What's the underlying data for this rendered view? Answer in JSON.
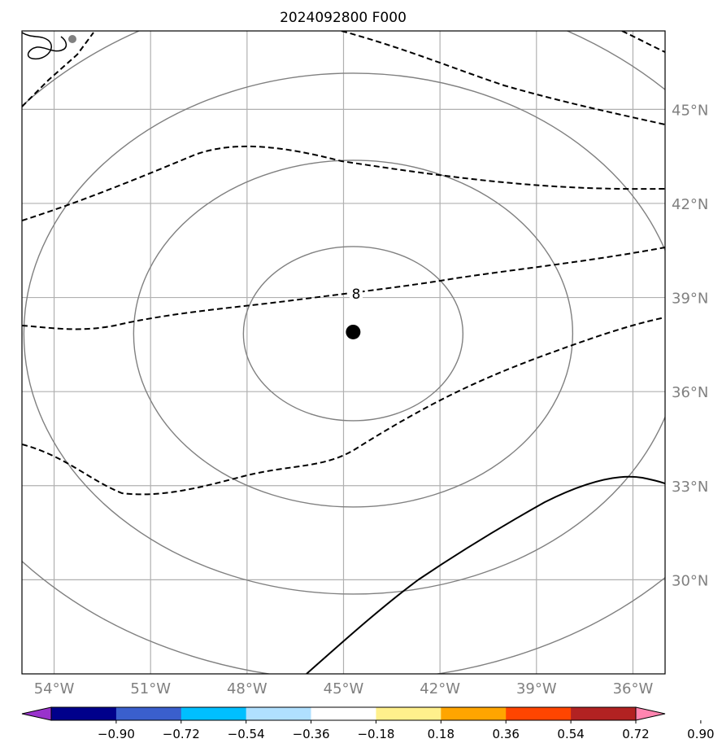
{
  "title": "2024092800 F000",
  "map": {
    "lon_range": [
      -55,
      -35
    ],
    "lat_range": [
      27,
      47.5
    ],
    "lon_ticks": [
      "54°W",
      "51°W",
      "48°W",
      "45°W",
      "42°W",
      "39°W",
      "36°W"
    ],
    "lat_ticks": [
      "45°N",
      "42°N",
      "39°N",
      "36°N",
      "33°N",
      "30°N"
    ],
    "lon_tick_values": [
      -54,
      -51,
      -48,
      -45,
      -42,
      -39,
      -36
    ],
    "lat_tick_values": [
      45,
      42,
      39,
      36,
      33,
      30
    ],
    "center_marker": {
      "lon": -44.7,
      "lat": 37.9
    },
    "contour_label": "8",
    "grid": true,
    "colors": {
      "gridline": "#b0b0b0",
      "tick_label": "#808080",
      "range_rings": "#808080",
      "dashed_contours": "#000000",
      "solid_contour": "#000000",
      "center_marker": "#000000"
    }
  },
  "colorbar": {
    "tick_labels": [
      "−0.90",
      "−0.72",
      "−0.54",
      "−0.36",
      "−0.18",
      "0.18",
      "0.36",
      "0.54",
      "0.72",
      "0.90"
    ],
    "bins": [
      {
        "color": "#9932cc"
      },
      {
        "color": "#00008b"
      },
      {
        "color": "#3a5fcd"
      },
      {
        "color": "#00bfff"
      },
      {
        "color": "#b0e0ff"
      },
      {
        "color": "#ffffff"
      },
      {
        "color": "#fff08c"
      },
      {
        "color": "#ffa500"
      },
      {
        "color": "#ff4500"
      },
      {
        "color": "#b22222"
      },
      {
        "color": "#ff85b0"
      }
    ]
  }
}
